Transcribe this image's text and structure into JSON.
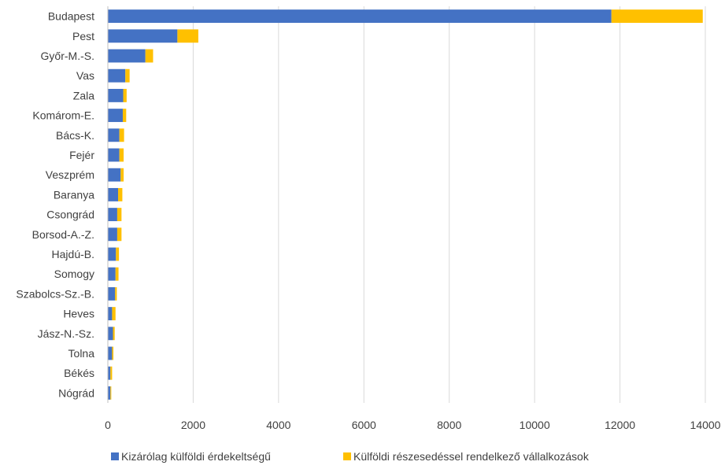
{
  "chart_data": {
    "type": "bar",
    "orientation": "horizontal",
    "stacked": true,
    "categories": [
      "Budapest",
      "Pest",
      "Győr-M.-S.",
      "Vas",
      "Zala",
      "Komárom-E.",
      "Bács-K.",
      "Fejér",
      "Veszprém",
      "Baranya",
      "Csongrád",
      "Borsod-A.-Z.",
      "Hajdú-B.",
      "Somogy",
      "Szabolcs-Sz.-B.",
      "Heves",
      "Jász-N.-Sz.",
      "Tolna",
      "Békés",
      "Nógrád"
    ],
    "series": [
      {
        "name": "Kizárólag külföldi érdekeltségű",
        "color": "#4472C4",
        "values": [
          11800,
          1630,
          880,
          410,
          360,
          350,
          270,
          270,
          300,
          240,
          220,
          220,
          190,
          180,
          170,
          100,
          120,
          100,
          60,
          60
        ]
      },
      {
        "name": "Külföldi részesedéssel rendelkező vállalkozások",
        "color": "#FFC000",
        "values": [
          2140,
          490,
          180,
          100,
          80,
          80,
          110,
          100,
          70,
          100,
          100,
          100,
          70,
          70,
          40,
          80,
          40,
          30,
          40,
          20
        ]
      }
    ],
    "xlim": [
      0,
      14000
    ],
    "xticks": [
      "0",
      "2000",
      "4000",
      "6000",
      "8000",
      "10000",
      "12000",
      "14000"
    ],
    "grid": true,
    "legend_position": "bottom",
    "title": "",
    "xlabel": "",
    "ylabel": ""
  }
}
